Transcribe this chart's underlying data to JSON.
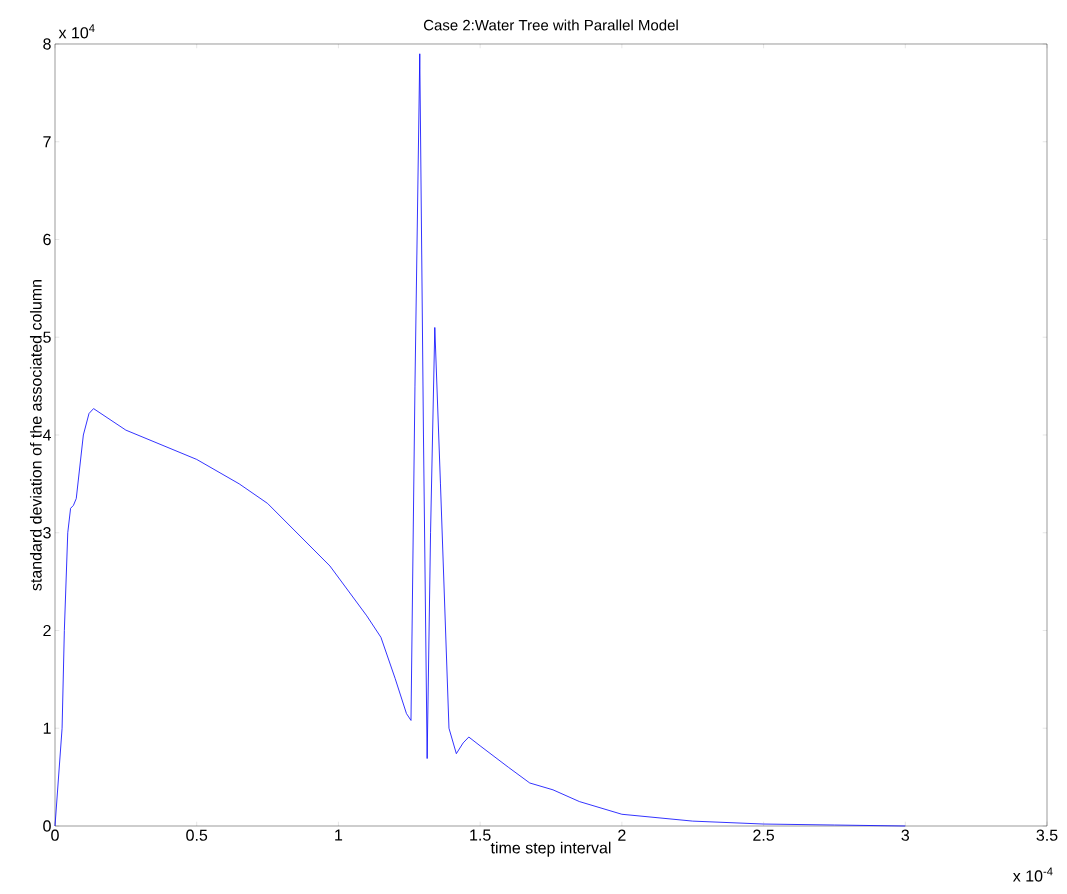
{
  "chart_data": {
    "type": "line",
    "title": "Case 2:Water Tree with Parallel Model",
    "xlabel": "time step interval",
    "ylabel": "standard deviation of the associated column",
    "annotations": [
      "x 10$^{4}$",
      "x 10$^{-4}$"
    ],
    "series": [
      {
        "color": "#0000ff",
        "x": [
          0,
          0.025,
          0.033,
          0.045,
          0.055,
          0.065,
          0.075,
          0.1,
          0.12,
          0.136,
          0.25,
          0.5,
          0.65,
          0.75,
          0.97,
          1.1,
          1.15,
          1.2,
          1.24,
          1.256,
          1.27,
          1.287,
          1.3,
          1.313,
          1.325,
          1.34,
          1.36,
          1.39,
          1.416,
          1.44,
          1.46,
          1.5,
          1.6,
          1.675,
          1.757,
          1.85,
          2.0,
          2.25,
          2.5,
          2.75,
          3.0
        ],
        "values": [
          0,
          1.0,
          2.0,
          3.0,
          3.25,
          3.28,
          3.35,
          4.0,
          4.22,
          4.27,
          4.05,
          3.75,
          3.5,
          3.3,
          2.66,
          2.15,
          1.93,
          1.51,
          1.15,
          1.08,
          4.5,
          7.9,
          4.0,
          0.69,
          3.0,
          5.1,
          3.5,
          1.0,
          0.74,
          0.85,
          0.91,
          0.82,
          0.6,
          0.44,
          0.37,
          0.25,
          0.12,
          0.05,
          0.02,
          0.01,
          0
        ]
      }
    ],
    "xlim": [
      0,
      3.5
    ],
    "ylim": [
      0,
      8
    ],
    "xticks": [
      0,
      0.5,
      1,
      1.5,
      2,
      2.5,
      3,
      3.5
    ],
    "yticks": [
      0,
      1,
      2,
      3,
      4,
      5,
      6,
      7,
      8
    ],
    "grid": false,
    "marker": "none",
    "line_style": "solid"
  }
}
